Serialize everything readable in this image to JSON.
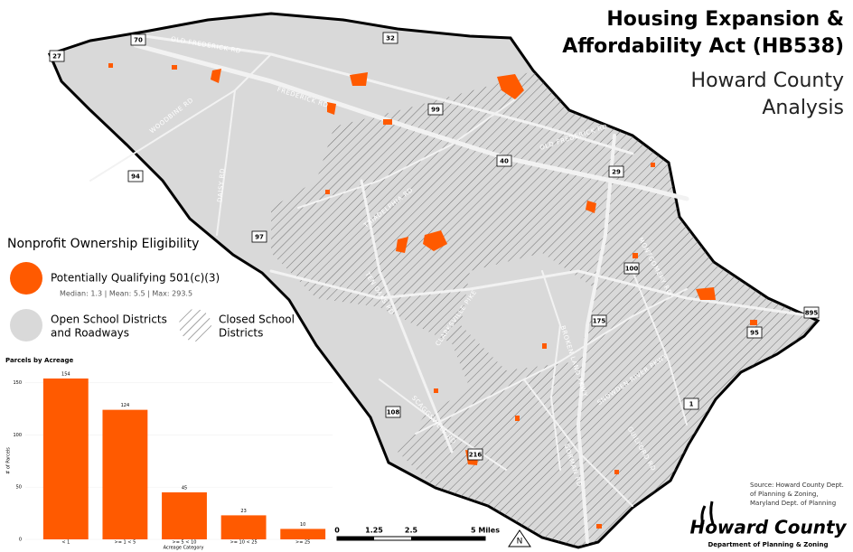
{
  "title": {
    "lines": [
      "Housing Expansion &",
      "Affordability Act (HB538)",
      "Howard County",
      "Analysis"
    ]
  },
  "legend": {
    "heading": "Nonprofit Ownership Eligibility",
    "qualifying": "Potentially Qualifying 501(c)(3)",
    "stats": "Median: 1.3 | Mean: 5.5 | Max: 293.5",
    "open": [
      "Open School Districts",
      "and Roadways"
    ],
    "closed": [
      "Closed School",
      "Districts"
    ]
  },
  "road_labels": [
    "OLD FREDERICK RD",
    "FREDERICK RD",
    "WOODBINE RD",
    "DAISY RD",
    "TRIADELPHIA RD",
    "OLD FREDERICK RD",
    "MONTGOMERY RD",
    "TEN OAKS RD",
    "CLARKSVILLE PIKE",
    "BROKEN LAND PKWY",
    "SNOWDEN RIVER PKWY",
    "SCAGGSVILLE RD",
    "GORMAN RD",
    "GUILFORD RD"
  ],
  "shields": [
    "70",
    "27",
    "32",
    "99",
    "40",
    "29",
    "94",
    "97",
    "100",
    "175",
    "95",
    "895",
    "1",
    "108",
    "216"
  ],
  "scale": [
    "0",
    "1.25",
    "2.5",
    "5 Miles"
  ],
  "north": "N",
  "source": [
    "Source: Howard County Dept.",
    "of Planning & Zoning,",
    "Maryland Dept. of Planning"
  ],
  "logo": {
    "name": "Howard County",
    "dept": "Department of Planning & Zoning"
  },
  "chart_data": {
    "type": "bar",
    "title": "Parcels by Acreage",
    "x_label": "Acreage Category",
    "y_label": "# of Parcels",
    "categories": [
      "< 1",
      ">= 1 < 5",
      ">= 5 < 10",
      ">= 10 < 25",
      ">= 25"
    ],
    "values": [
      154,
      124,
      45,
      23,
      10
    ],
    "color": "#ff5a00",
    "ylim": [
      0,
      160
    ],
    "yticks": [
      0,
      50,
      100,
      150
    ]
  }
}
